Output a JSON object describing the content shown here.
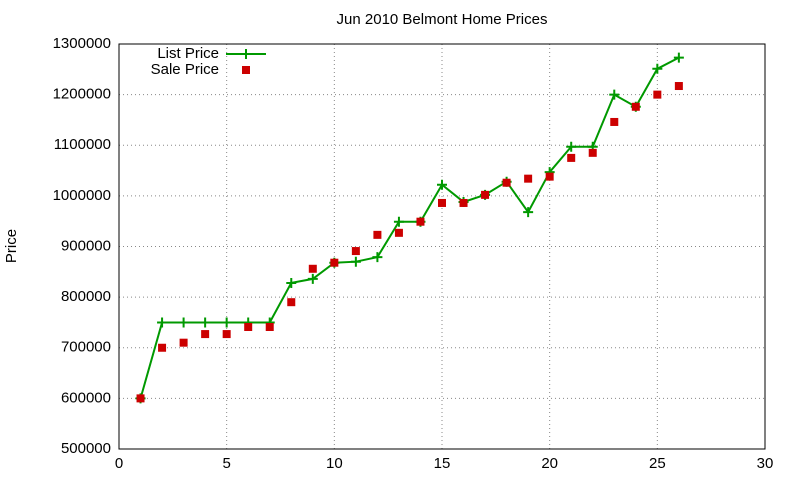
{
  "chart_data": {
    "type": "line",
    "title": "Jun 2010 Belmont Home Prices",
    "y_label": "Price",
    "x": [
      1,
      2,
      3,
      4,
      5,
      6,
      7,
      8,
      9,
      10,
      11,
      12,
      13,
      14,
      15,
      16,
      17,
      18,
      19,
      20,
      21,
      22,
      23,
      24,
      25,
      26
    ],
    "series": [
      {
        "name": "List Price",
        "color": "#009900",
        "style": "linespoints",
        "values": [
          600000,
          750000,
          750000,
          750000,
          750000,
          750000,
          750000,
          828000,
          836000,
          868000,
          870000,
          879000,
          949000,
          949000,
          1022000,
          988000,
          1002000,
          1028000,
          968000,
          1047000,
          1097000,
          1097000,
          1200000,
          1176000,
          1251000,
          1273000
        ]
      },
      {
        "name": "Sale Price",
        "color": "#cc0000",
        "style": "points",
        "values": [
          600000,
          700000,
          710000,
          727000,
          727000,
          741000,
          741000,
          790000,
          856000,
          868000,
          891000,
          923000,
          927000,
          949000,
          986000,
          986000,
          1002000,
          1026000,
          1034000,
          1038000,
          1075000,
          1085000,
          1146000,
          1176000,
          1200000,
          1217000
        ]
      }
    ],
    "xlim": [
      0,
      30
    ],
    "xticks": [
      0,
      5,
      10,
      15,
      20,
      25,
      30
    ],
    "ylim": [
      500000,
      1300000
    ],
    "yticks": [
      500000,
      600000,
      700000,
      800000,
      900000,
      1000000,
      1100000,
      1200000,
      1300000
    ],
    "grid": true,
    "legend": "upper left"
  }
}
